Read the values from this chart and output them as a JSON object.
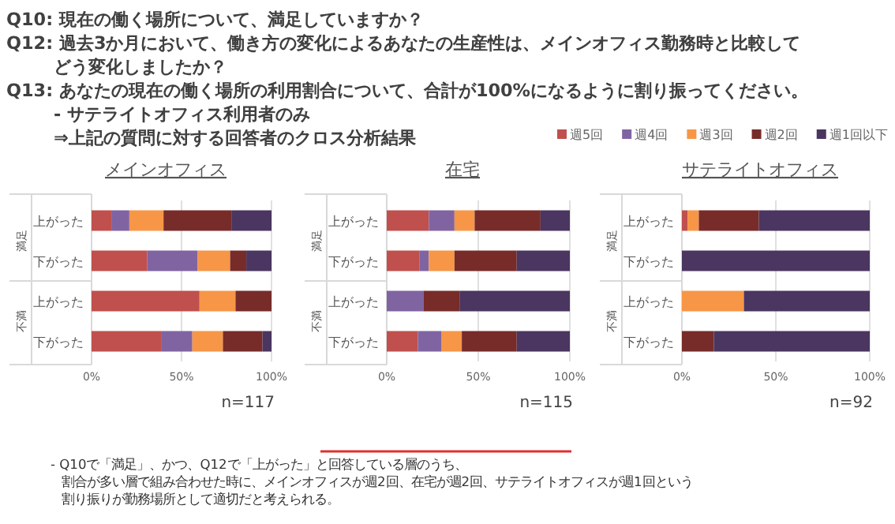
{
  "chart_data": [
    {
      "type": "bar",
      "orientation": "horizontal",
      "stacked": true,
      "title": "メインオフィス",
      "categories": [
        "上がった",
        "下がった",
        "上がった",
        "下がった"
      ],
      "xlim": [
        0,
        100
      ],
      "xticks": [
        {
          "value": 0,
          "label": "0%"
        },
        {
          "value": 50,
          "label": "50%"
        },
        {
          "value": 100,
          "label": "100%"
        }
      ],
      "grid": "x",
      "legend": false,
      "series": [
        {
          "color": "#c0504d",
          "values": [
            11,
            31,
            60,
            39
          ]
        },
        {
          "color": "#8064a2",
          "values": [
            10,
            28,
            0,
            17
          ]
        },
        {
          "color": "#f79646",
          "values": [
            19,
            18,
            20,
            17
          ]
        },
        {
          "color": "#772c2a",
          "values": [
            38,
            9,
            20,
            22
          ]
        },
        {
          "color": "#4a3660",
          "values": [
            22,
            14,
            0,
            5
          ]
        }
      ],
      "annotations": [
        "満足",
        "不満",
        "n=117",
        "Q10: 現在の働く場所について、満足していますか？",
        "Q12: 過去3か月において、働き方の変化によるあなたの生産性は、メインオフィス勤務時と比較して",
        "どう変化しましたか？",
        "Q13: あなたの現在の働く場所の利用割合について、合計が100%になるように割り振ってください。",
        "- サテライトオフィス利用者のみ",
        "⇒上記の質問に対する回答者のクロス分析結果",
        "- Q10で「満足」、かつ、Q12で「上がった」と回答している層のうち、",
        "割合が多い層で組み合わせた時に、メインオフィスが週2回、在宅が週2回、サテライトオフィスが週1回という",
        "割り振りが勤務場所として適切だと考えられる。"
      ]
    },
    {
      "type": "bar",
      "orientation": "horizontal",
      "stacked": true,
      "title": "在宅",
      "categories": [
        "上がった",
        "下がった",
        "上がった",
        "下がった"
      ],
      "xlim": [
        0,
        100
      ],
      "xticks": [
        {
          "value": 0,
          "label": "0%"
        },
        {
          "value": 50,
          "label": "50%"
        },
        {
          "value": 100,
          "label": "100%"
        }
      ],
      "grid": "x",
      "legend": false,
      "series": [
        {
          "color": "#c0504d",
          "values": [
            23,
            18,
            0,
            17
          ]
        },
        {
          "color": "#8064a2",
          "values": [
            14,
            5,
            20,
            13
          ]
        },
        {
          "color": "#f79646",
          "values": [
            11,
            14,
            0,
            11
          ]
        },
        {
          "color": "#772c2a",
          "values": [
            36,
            34,
            20,
            30
          ]
        },
        {
          "color": "#4a3660",
          "values": [
            16,
            29,
            60,
            29
          ]
        }
      ],
      "annotations": [
        "満足",
        "不満",
        "n=115"
      ]
    },
    {
      "type": "bar",
      "orientation": "horizontal",
      "stacked": true,
      "title": "サテライトオフィス",
      "categories": [
        "上がった",
        "下がった",
        "上がった",
        "下がった"
      ],
      "xlim": [
        0,
        100
      ],
      "xticks": [
        {
          "value": 0,
          "label": "0%"
        },
        {
          "value": 50,
          "label": "50%"
        },
        {
          "value": 100,
          "label": "100%"
        }
      ],
      "grid": "x",
      "legend": "top left",
      "series": [
        {
          "name": "週5回",
          "color": "#c0504d",
          "values": [
            3,
            0,
            0,
            0
          ]
        },
        {
          "name": "週4回",
          "color": "#8064a2",
          "values": [
            0,
            0,
            0,
            0
          ]
        },
        {
          "name": "週3回",
          "color": "#f79646",
          "values": [
            6,
            0,
            33,
            0
          ]
        },
        {
          "name": "週2回",
          "color": "#772c2a",
          "values": [
            32,
            0,
            0,
            17
          ]
        },
        {
          "name": "週1回以下",
          "color": "#4a3660",
          "values": [
            59,
            100,
            67,
            83
          ]
        }
      ],
      "annotations": [
        "満足",
        "不満",
        "n=92"
      ]
    }
  ]
}
